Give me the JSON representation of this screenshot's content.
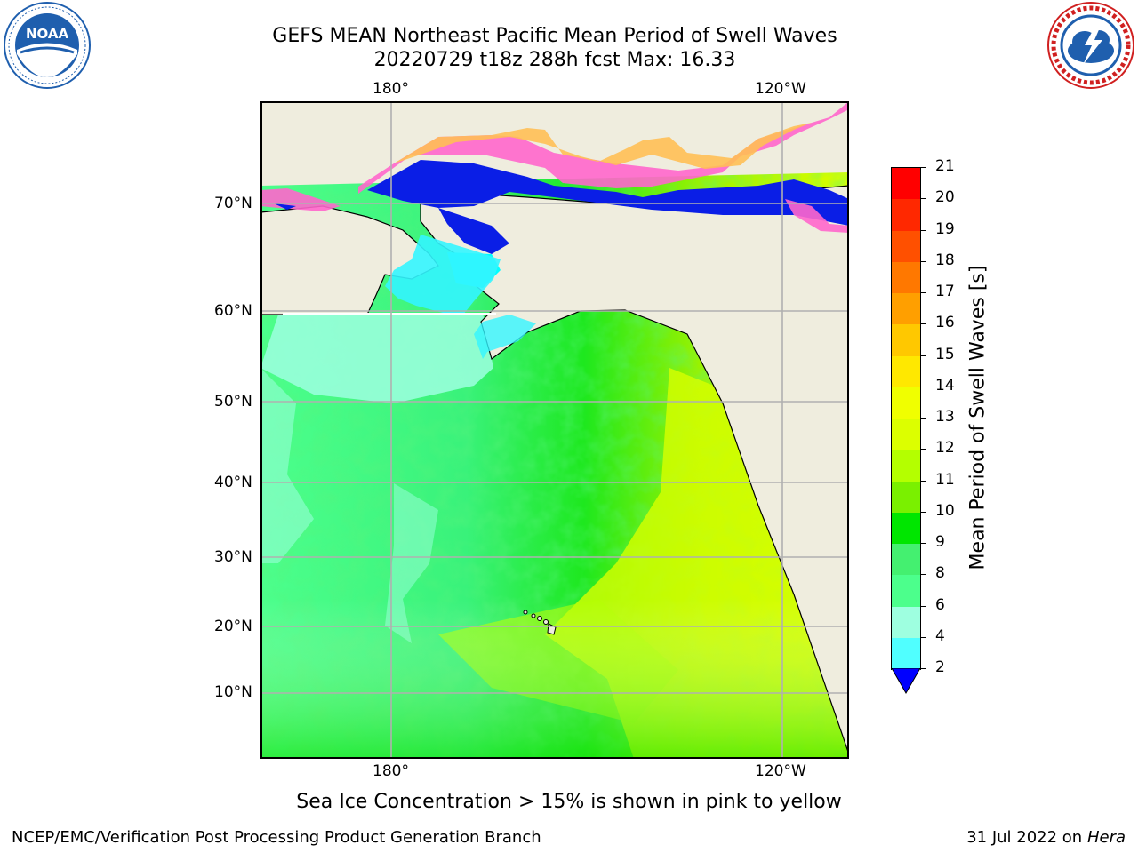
{
  "header": {
    "title_line1": "GEFS MEAN Northeast Pacific Mean Period of Swell Waves",
    "title_line2": "20220729 t18z 288h fcst   Max: 16.33"
  },
  "logos": {
    "left": {
      "text": "NOAA",
      "ring_text": "NATIONAL OCEANIC AND ATMOSPHERIC ADMINISTRATION · U.S. DEPARTMENT OF COMMERCE",
      "color": "#1f5fae"
    },
    "right": {
      "ring_text": "NATIONAL WEATHER SERVICE",
      "color": "#d02020"
    }
  },
  "map": {
    "top_lon_labels": [
      "180°",
      "120°W"
    ],
    "bottom_lon_labels": [
      "180°",
      "120°W"
    ],
    "lat_labels": [
      "70°N",
      "60°N",
      "50°N",
      "40°N",
      "30°N",
      "20°N",
      "10°N"
    ],
    "colors": {
      "land": "#efedde",
      "grid": "#b0b0b0",
      "ice_pink": "#ff66cc",
      "ice_orange": "#ffbf55",
      "ice_deep": "#0a1ee6"
    }
  },
  "colorbar": {
    "label": "Mean Period of Swell Waves [s]",
    "ticks": [
      "21",
      "20",
      "19",
      "18",
      "17",
      "16",
      "15",
      "14",
      "13",
      "12",
      "11",
      "10",
      "9",
      "8",
      "6",
      "4",
      "2"
    ],
    "colors": [
      "#ff0000",
      "#ff2800",
      "#ff5000",
      "#ff7800",
      "#ff9f00",
      "#ffc800",
      "#ffe800",
      "#f0ff00",
      "#dcff00",
      "#b4ff00",
      "#7af000",
      "#00e600",
      "#44f070",
      "#4cff8c",
      "#9effe0",
      "#50ffff",
      "#00ffff",
      "#0077ff"
    ],
    "under_color": "#0000ff"
  },
  "footer": {
    "note": "Sea Ice Concentration > 15% is shown in pink to yellow",
    "left": "NCEP/EMC/Verification Post Processing Product Generation Branch",
    "date": "31 Jul 2022 on ",
    "machine": "Hera"
  }
}
